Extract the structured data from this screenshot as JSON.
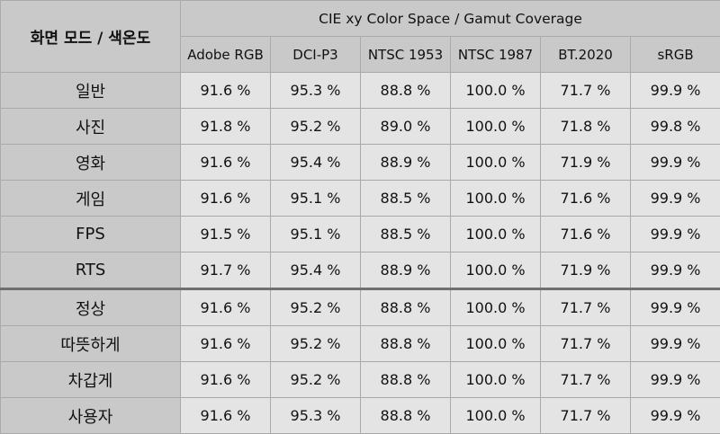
{
  "header": {
    "corner": "화면 모드 / 색온도",
    "group": "CIE xy Color Space / Gamut Coverage",
    "columns": [
      "Adobe RGB",
      "DCI-P3",
      "NTSC 1953",
      "NTSC 1987",
      "BT.2020",
      "sRGB"
    ]
  },
  "rows": [
    {
      "mode": "일반",
      "values": [
        "91.6 %",
        "95.3 %",
        "88.8 %",
        "100.0 %",
        "71.7 %",
        "99.9 %"
      ]
    },
    {
      "mode": "사진",
      "values": [
        "91.8 %",
        "95.2 %",
        "89.0 %",
        "100.0 %",
        "71.8 %",
        "99.8 %"
      ]
    },
    {
      "mode": "영화",
      "values": [
        "91.6 %",
        "95.4 %",
        "88.9 %",
        "100.0 %",
        "71.9 %",
        "99.9 %"
      ]
    },
    {
      "mode": "게임",
      "values": [
        "91.6 %",
        "95.1 %",
        "88.5 %",
        "100.0 %",
        "71.6 %",
        "99.9 %"
      ]
    },
    {
      "mode": "FPS",
      "values": [
        "91.5 %",
        "95.1 %",
        "88.5 %",
        "100.0 %",
        "71.6 %",
        "99.9 %"
      ]
    },
    {
      "mode": "RTS",
      "values": [
        "91.7 %",
        "95.4 %",
        "88.9 %",
        "100.0 %",
        "71.9 %",
        "99.9 %"
      ]
    },
    {
      "mode": "정상",
      "values": [
        "91.6 %",
        "95.2 %",
        "88.8 %",
        "100.0 %",
        "71.7 %",
        "99.9 %"
      ]
    },
    {
      "mode": "따뜻하게",
      "values": [
        "91.6 %",
        "95.2 %",
        "88.8 %",
        "100.0 %",
        "71.7 %",
        "99.9 %"
      ]
    },
    {
      "mode": "차갑게",
      "values": [
        "91.6 %",
        "95.2 %",
        "88.8 %",
        "100.0 %",
        "71.7 %",
        "99.9 %"
      ]
    },
    {
      "mode": "사용자",
      "values": [
        "91.6 %",
        "95.3 %",
        "88.8 %",
        "100.0 %",
        "71.7 %",
        "99.9 %"
      ]
    }
  ],
  "colors": {
    "header_bg": "#c9c9c9",
    "cell_bg": "#e4e4e4",
    "border": "#a9a9a9",
    "separator": "#6f6f6f"
  }
}
